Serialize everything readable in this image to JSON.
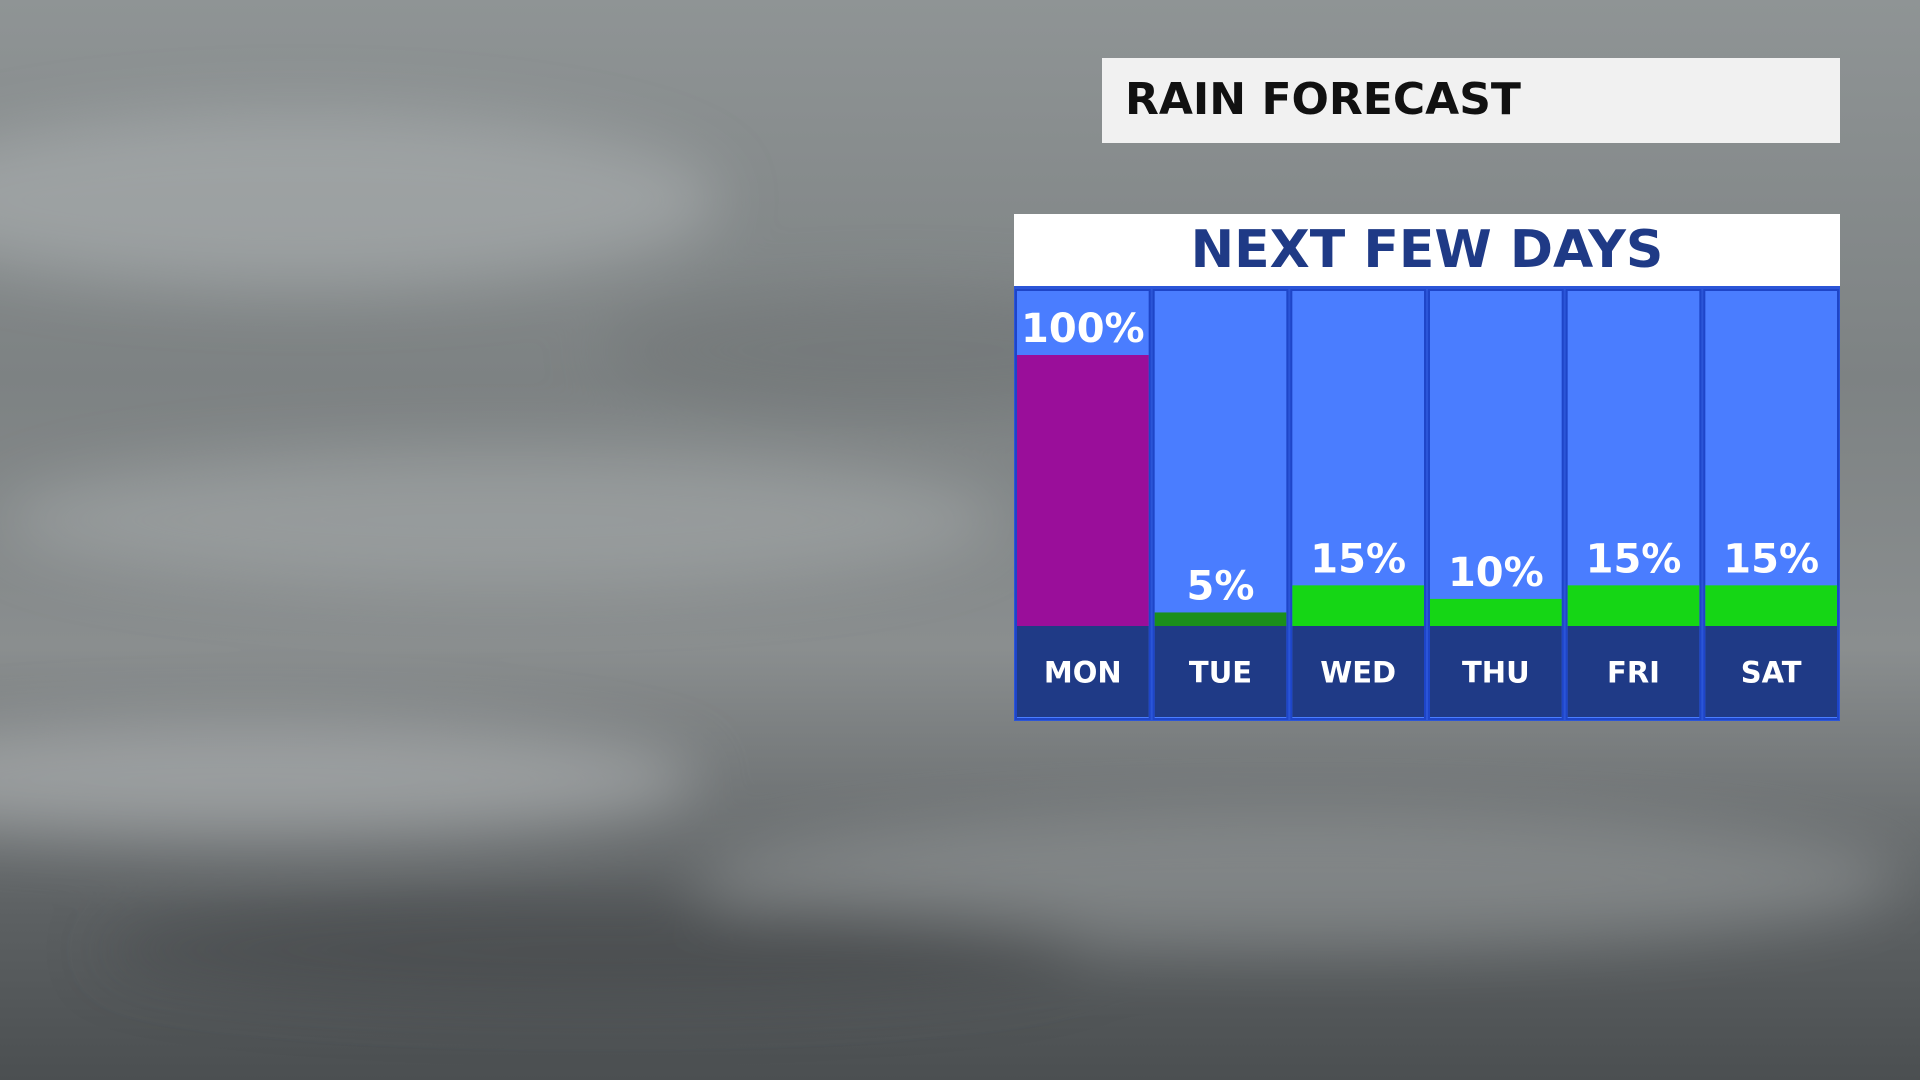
{
  "chart_data": {
    "type": "bar",
    "title": "RAIN FORECAST",
    "subtitle": "NEXT FEW DAYS",
    "categories": [
      "MON",
      "TUE",
      "WED",
      "THU",
      "FRI",
      "SAT"
    ],
    "values": [
      100,
      5,
      15,
      10,
      15,
      15
    ],
    "value_labels": [
      "100%",
      "5%",
      "15%",
      "10%",
      "15%",
      "15%"
    ],
    "colors": [
      "#9a0e9a",
      "#1b8f1b",
      "#15d615",
      "#15d615",
      "#15d615",
      "#15d615"
    ],
    "ylim": [
      0,
      100
    ]
  }
}
